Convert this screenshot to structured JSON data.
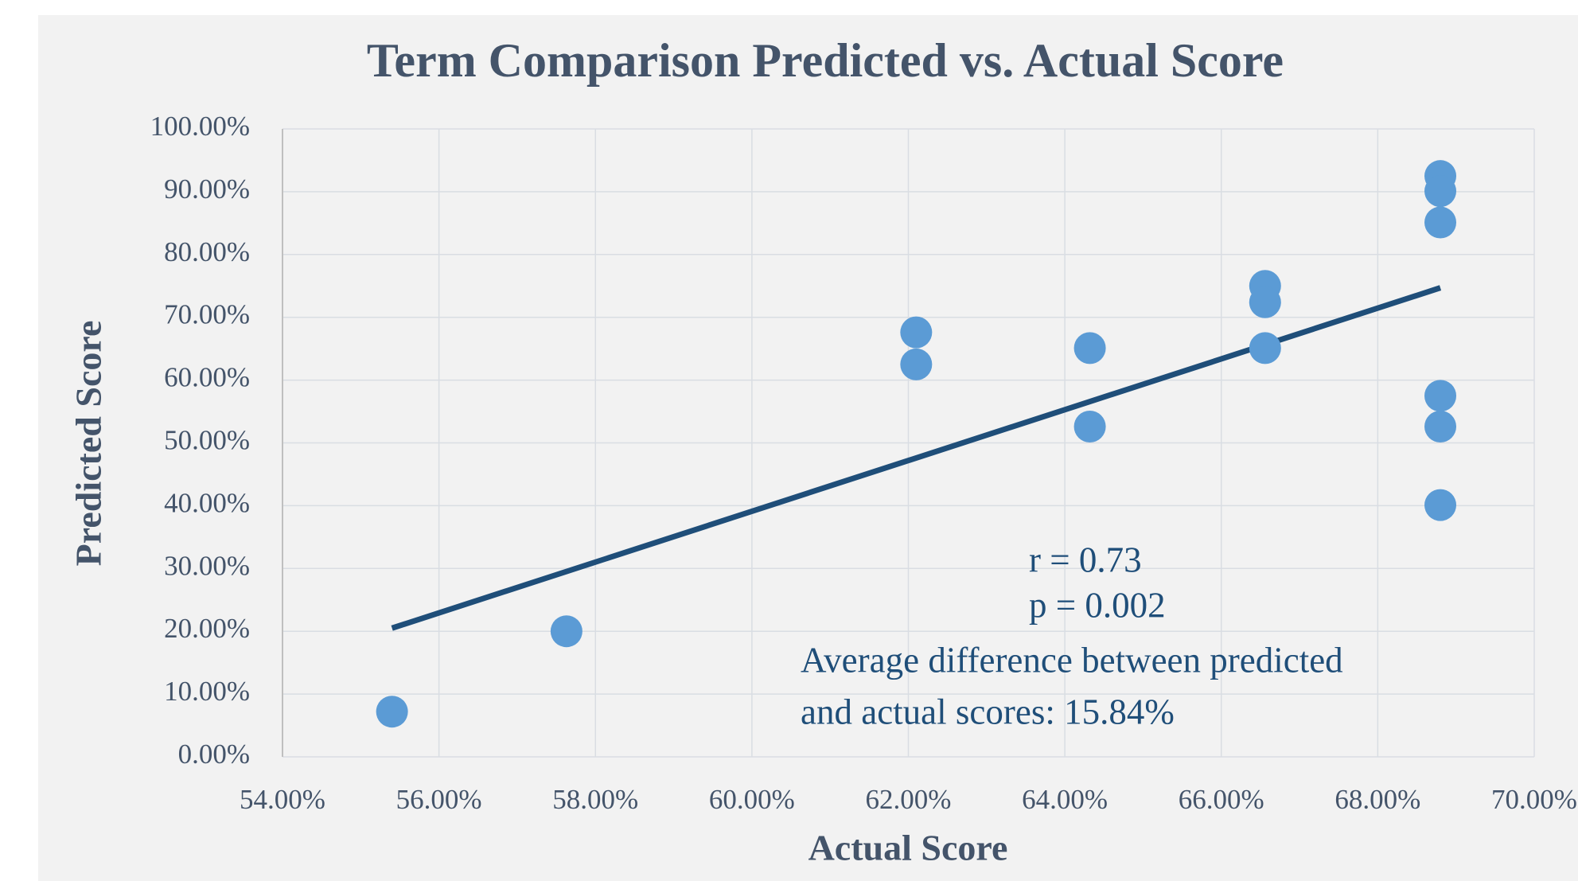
{
  "chart_data": {
    "type": "scatter",
    "title": "Term Comparison Predicted vs. Actual Score",
    "x_label": "Actual Score",
    "y_label": "Predicted Score",
    "x": [
      55.4,
      57.63,
      62.1,
      62.1,
      64.32,
      64.32,
      66.56,
      66.56,
      66.56,
      68.8,
      68.8,
      68.8,
      68.8,
      68.8,
      68.8
    ],
    "series": [
      {
        "color": "#5b9bd5",
        "values": [
          7.2,
          20.0,
          67.6,
          62.5,
          65.1,
          52.6,
          75.0,
          72.4,
          65.1,
          92.5,
          90.1,
          85.1,
          57.5,
          52.6,
          40.1
        ]
      }
    ],
    "trendline": {
      "x": [
        55.4,
        68.8
      ],
      "values": [
        20.5,
        74.7
      ],
      "color": "#1f4e79"
    },
    "xlim": [
      54,
      70
    ],
    "ylim": [
      0,
      100
    ],
    "xticks": [
      {
        "value": 54,
        "label": "54.00%"
      },
      {
        "value": 56,
        "label": "56.00%"
      },
      {
        "value": 58,
        "label": "58.00%"
      },
      {
        "value": 60,
        "label": "60.00%"
      },
      {
        "value": 62,
        "label": "62.00%"
      },
      {
        "value": 64,
        "label": "64.00%"
      },
      {
        "value": 66,
        "label": "66.00%"
      },
      {
        "value": 68,
        "label": "68.00%"
      },
      {
        "value": 70,
        "label": "70.00%"
      }
    ],
    "yticks": [
      {
        "value": 0,
        "label": "0.00%"
      },
      {
        "value": 10,
        "label": "10.00%"
      },
      {
        "value": 20,
        "label": "20.00%"
      },
      {
        "value": 30,
        "label": "30.00%"
      },
      {
        "value": 40,
        "label": "40.00%"
      },
      {
        "value": 50,
        "label": "50.00%"
      },
      {
        "value": 60,
        "label": "60.00%"
      },
      {
        "value": 70,
        "label": "70.00%"
      },
      {
        "value": 80,
        "label": "80.00%"
      },
      {
        "value": 90,
        "label": "90.00%"
      },
      {
        "value": 100,
        "label": "100.00%"
      }
    ],
    "grid": true,
    "annotations": [
      "r = 0.73",
      "p = 0.002",
      "Average difference between predicted",
      "and actual scores: 15.84%"
    ]
  }
}
